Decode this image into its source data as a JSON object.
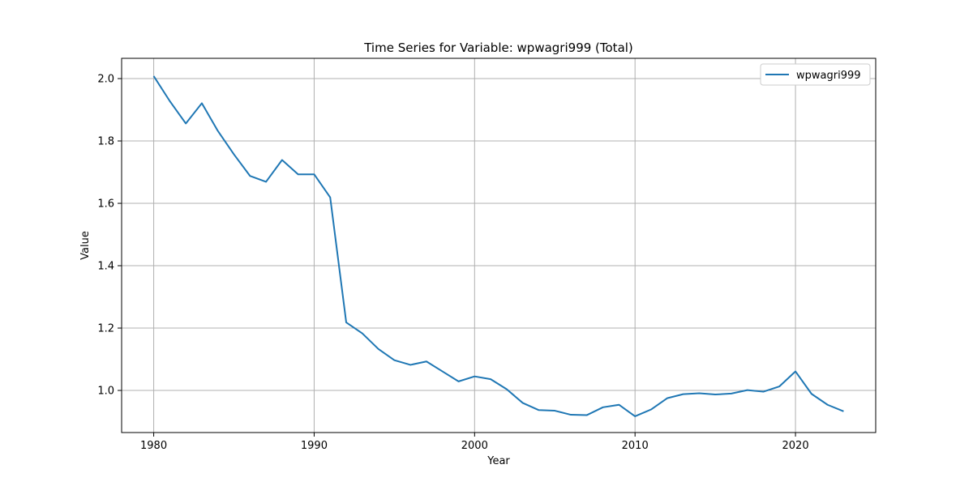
{
  "chart_data": {
    "type": "line",
    "title": "Time Series for Variable: wpwagri999 (Total)",
    "xlabel": "Year",
    "ylabel": "Value",
    "xlim": [
      1978,
      2025
    ],
    "ylim": [
      0.865,
      2.065
    ],
    "xticks": [
      1980,
      1990,
      2000,
      2010,
      2020
    ],
    "yticks": [
      1.0,
      1.2,
      1.4,
      1.6,
      1.8,
      2.0
    ],
    "ytick_labels": [
      "1.0",
      "1.2",
      "1.4",
      "1.6",
      "1.8",
      "2.0"
    ],
    "grid": true,
    "legend_position": "top-right",
    "series": [
      {
        "name": "wpwagri999",
        "color": "#1f77b4",
        "x": [
          1980,
          1981,
          1982,
          1983,
          1984,
          1985,
          1986,
          1987,
          1988,
          1989,
          1990,
          1991,
          1992,
          1993,
          1994,
          1995,
          1996,
          1997,
          1998,
          1999,
          2000,
          2001,
          2002,
          2003,
          2004,
          2005,
          2006,
          2007,
          2008,
          2009,
          2010,
          2011,
          2012,
          2013,
          2014,
          2015,
          2016,
          2017,
          2018,
          2019,
          2020,
          2021,
          2022,
          2023
        ],
        "y": [
          2.008,
          1.928,
          1.856,
          1.921,
          1.832,
          1.757,
          1.688,
          1.669,
          1.739,
          1.693,
          1.693,
          1.619,
          1.218,
          1.183,
          1.133,
          1.097,
          1.082,
          1.093,
          1.061,
          1.029,
          1.045,
          1.036,
          1.004,
          0.96,
          0.937,
          0.935,
          0.922,
          0.921,
          0.946,
          0.954,
          0.917,
          0.939,
          0.975,
          0.988,
          0.991,
          0.987,
          0.99,
          1.001,
          0.996,
          1.013,
          1.061,
          0.989,
          0.954,
          0.933
        ]
      }
    ]
  }
}
